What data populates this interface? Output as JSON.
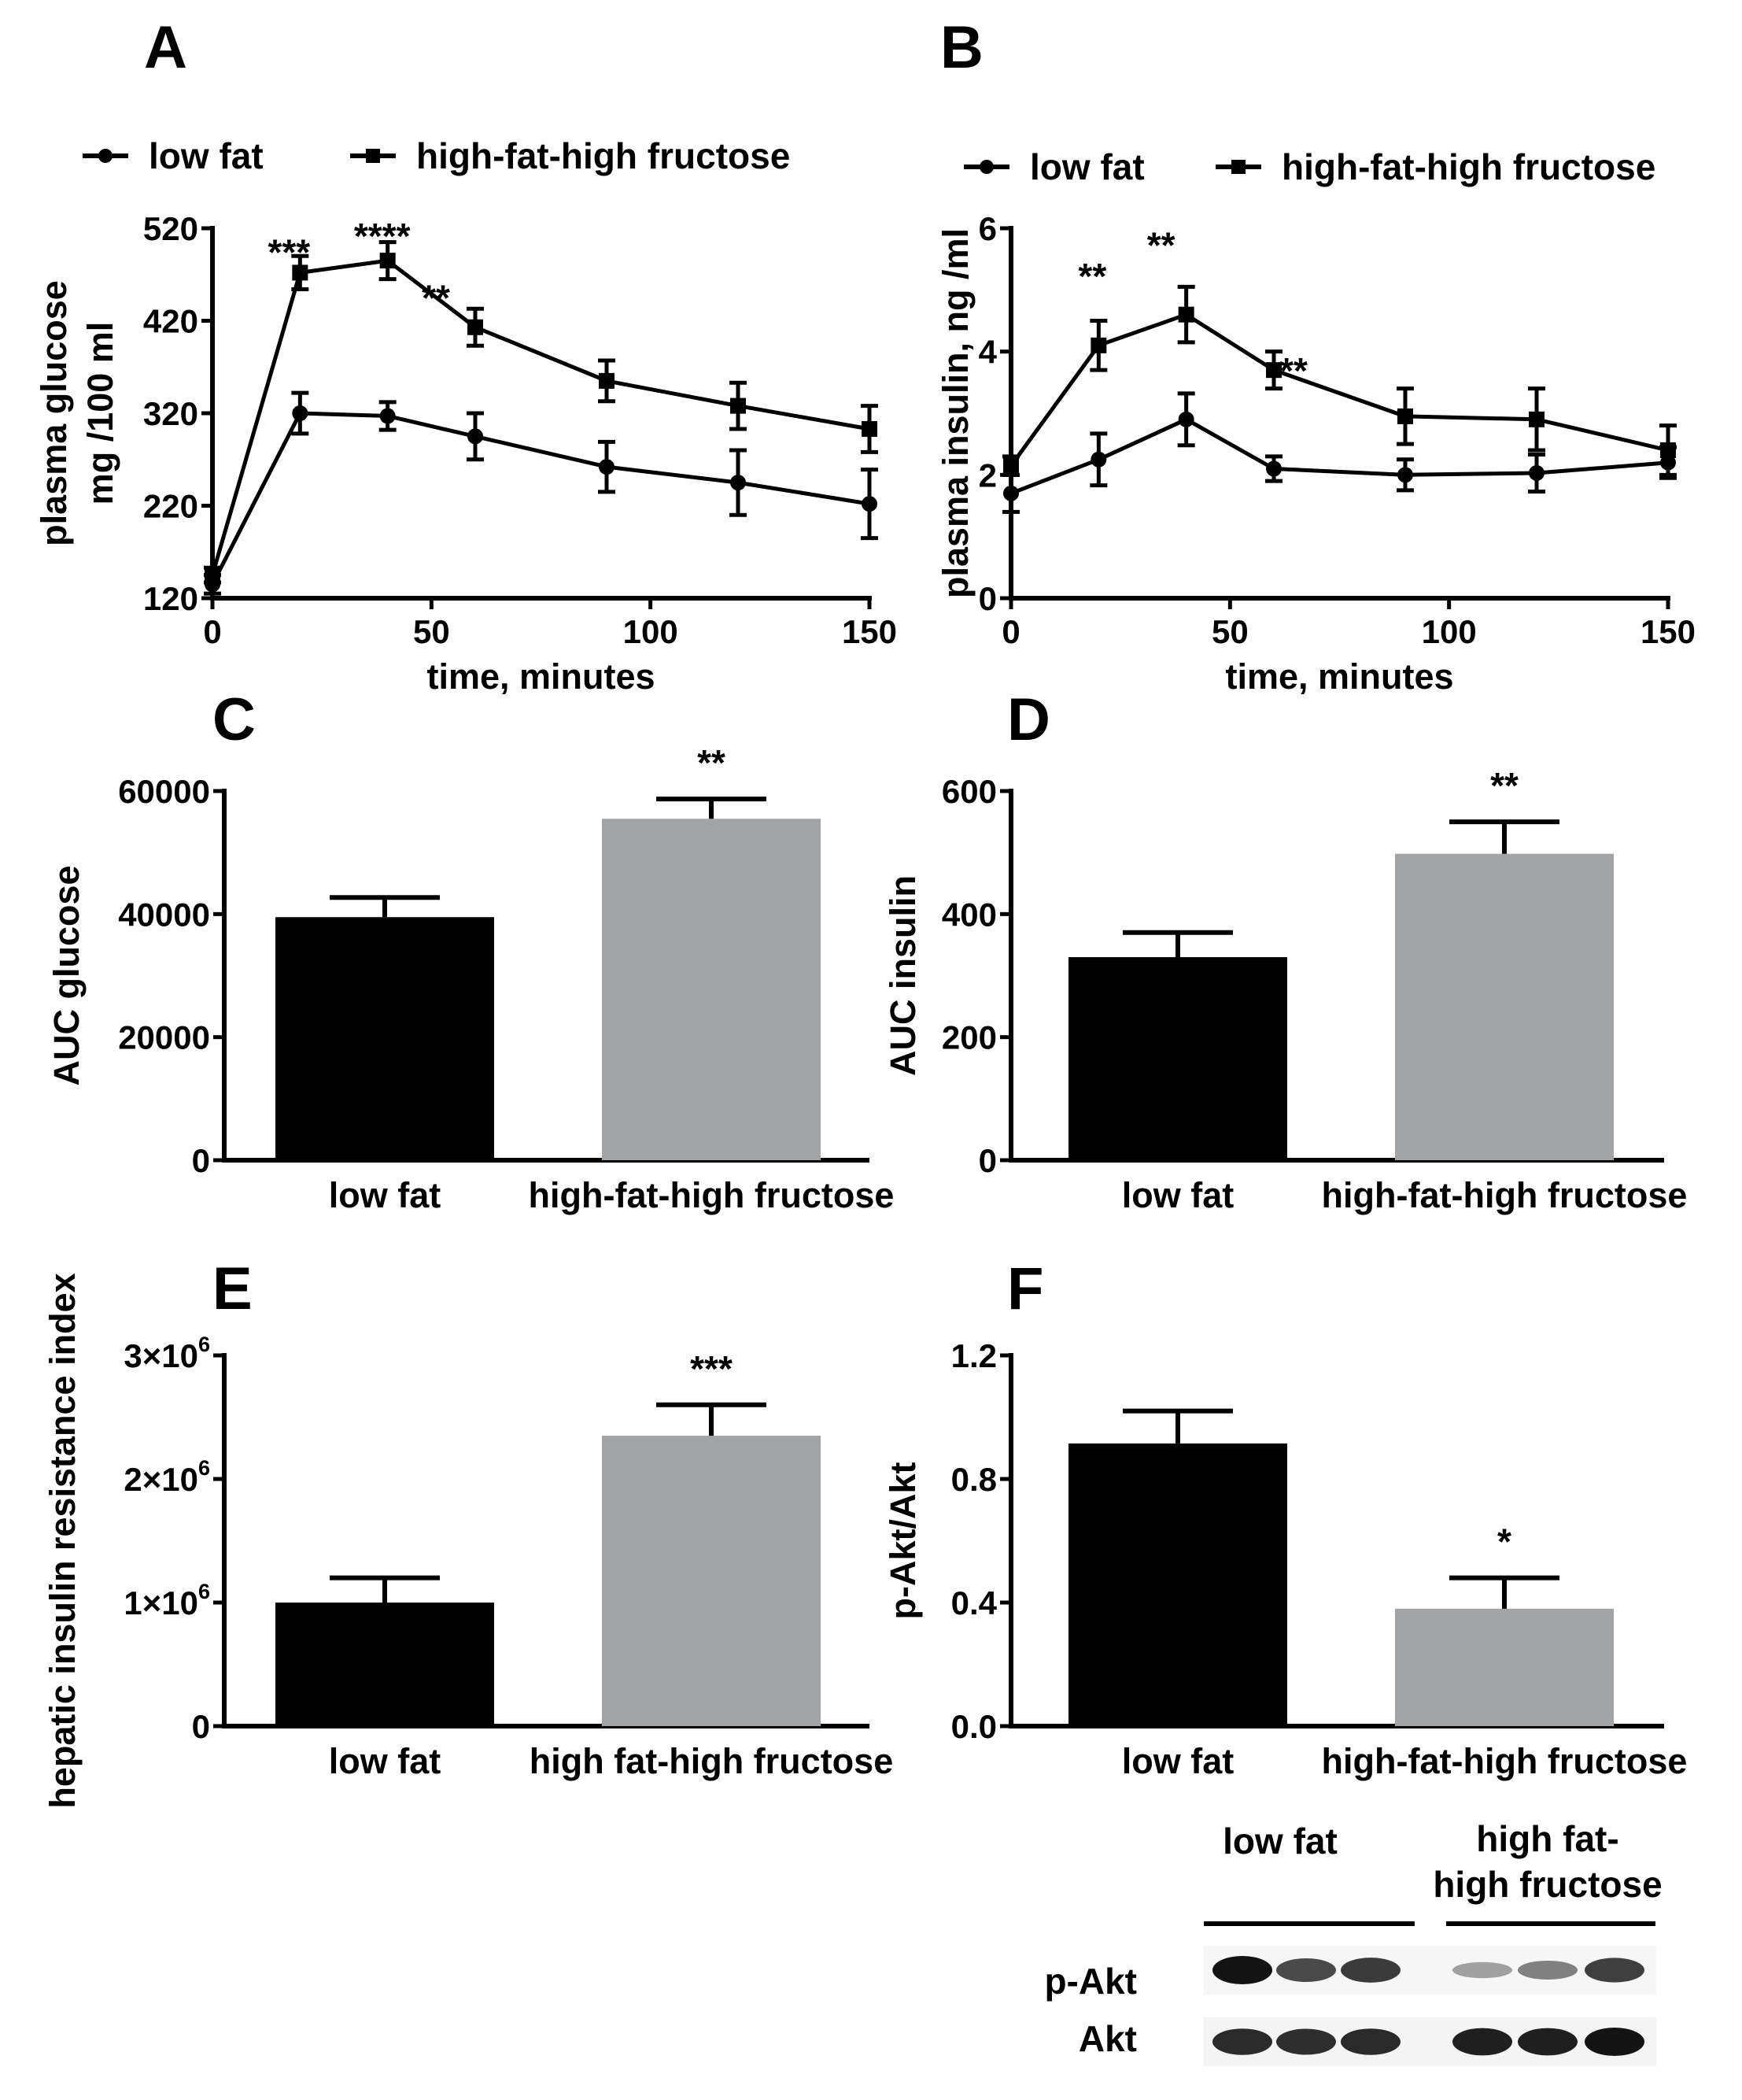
{
  "chart_data": [
    {
      "panel": "A",
      "type": "line",
      "x": [
        0,
        20,
        40,
        60,
        90,
        120,
        150
      ],
      "series": [
        {
          "name": "low fat",
          "marker": "circle",
          "values": [
            135,
            320,
            317,
            295,
            262,
            245,
            222
          ],
          "errors": [
            10,
            22,
            15,
            25,
            27,
            35,
            37
          ]
        },
        {
          "name": "high-fat-high fructose",
          "marker": "square",
          "values": [
            145,
            472,
            485,
            413,
            355,
            328,
            303
          ],
          "errors": [
            8,
            18,
            20,
            20,
            22,
            25,
            25
          ]
        }
      ],
      "annotations": [
        {
          "x": 20,
          "text": "***"
        },
        {
          "x": 40,
          "text": "****"
        },
        {
          "x": 60,
          "text": "**"
        }
      ],
      "xticks": [
        "0",
        "50",
        "100",
        "150"
      ],
      "yticks": [
        "120",
        "220",
        "320",
        "420",
        "520"
      ],
      "xlim": [
        0,
        150
      ],
      "ylim": [
        120,
        520
      ],
      "xlabel": "time, minutes",
      "ylabel_lines": [
        "plasma glucose",
        "mg /100 ml"
      ]
    },
    {
      "panel": "B",
      "type": "line",
      "x": [
        0,
        20,
        40,
        60,
        90,
        120,
        150
      ],
      "series": [
        {
          "name": "low fat",
          "marker": "circle",
          "values": [
            1.7,
            2.25,
            2.9,
            2.1,
            2.0,
            2.03,
            2.2
          ],
          "errors": [
            0.3,
            0.42,
            0.42,
            0.2,
            0.25,
            0.3,
            0.25
          ]
        },
        {
          "name": "high-fat-high fructose",
          "marker": "square",
          "values": [
            2.15,
            4.1,
            4.6,
            3.7,
            2.95,
            2.9,
            2.4
          ],
          "errors": [
            0.15,
            0.4,
            0.45,
            0.3,
            0.45,
            0.5,
            0.4
          ]
        }
      ],
      "annotations": [
        {
          "x": 20,
          "text": "**"
        },
        {
          "x": 40,
          "text": "**"
        },
        {
          "x": 60,
          "text": "**"
        }
      ],
      "xticks": [
        "0",
        "50",
        "100",
        "150"
      ],
      "yticks": [
        "0",
        "2",
        "4",
        "6"
      ],
      "xlim": [
        0,
        150
      ],
      "ylim": [
        0,
        6
      ],
      "xlabel": "time, minutes",
      "ylabel_lines": [
        "plasma insulin, ng /ml"
      ]
    },
    {
      "panel": "C",
      "type": "bar",
      "categories": [
        "low fat",
        "high-fat-high fructose"
      ],
      "values": [
        39500,
        55500
      ],
      "errors": [
        3200,
        3200
      ],
      "colors": [
        "#000000",
        "#a3a4a6"
      ],
      "annotations": [
        "",
        "**"
      ],
      "yticks": [
        "0",
        "20000",
        "40000",
        "60000"
      ],
      "ylim": [
        0,
        60000
      ],
      "ylabel": "AUC glucose"
    },
    {
      "panel": "D",
      "type": "bar",
      "categories": [
        "low fat",
        "high-fat-high fructose"
      ],
      "values": [
        330,
        498
      ],
      "errors": [
        40,
        52
      ],
      "colors": [
        "#000000",
        "#a3a4a6"
      ],
      "annotations": [
        "",
        "**"
      ],
      "yticks": [
        "0",
        "200",
        "400",
        "600"
      ],
      "ylim": [
        0,
        600
      ],
      "ylabel": "AUC insulin"
    },
    {
      "panel": "E",
      "type": "bar",
      "categories": [
        "low fat",
        "high fat-high fructose"
      ],
      "values": [
        1000000,
        2350000
      ],
      "errors": [
        200000,
        250000
      ],
      "colors": [
        "#000000",
        "#a3a4a6"
      ],
      "annotations": [
        "",
        "***"
      ],
      "yticks": [
        {
          "base": "0",
          "exp": ""
        },
        {
          "base": "1×10",
          "exp": "6"
        },
        {
          "base": "2×10",
          "exp": "6"
        },
        {
          "base": "3×10",
          "exp": "6"
        }
      ],
      "ylim": [
        0,
        3000000
      ],
      "ylabel": "hepatic insulin resistance index"
    },
    {
      "panel": "F",
      "type": "bar",
      "categories": [
        "low fat",
        "high-fat-high fructose"
      ],
      "values": [
        0.915,
        0.38
      ],
      "errors": [
        0.105,
        0.1
      ],
      "colors": [
        "#000000",
        "#a3a4a6"
      ],
      "annotations": [
        "",
        "*"
      ],
      "yticks": [
        "0.0",
        "0.4",
        "0.8",
        "1.2"
      ],
      "ylim": [
        0,
        1.2
      ],
      "ylabel": "p-Akt/Akt"
    }
  ],
  "western_blot": {
    "group_labels": [
      [
        "low fat"
      ],
      [
        "high fat-",
        "high fructose"
      ]
    ],
    "row_labels": [
      "p-Akt",
      "Akt"
    ],
    "band_intensity": [
      [
        1.0,
        0.75,
        0.82,
        0.35,
        0.5,
        0.8
      ],
      [
        0.9,
        0.88,
        0.9,
        0.95,
        0.95,
        1.0
      ]
    ]
  }
}
